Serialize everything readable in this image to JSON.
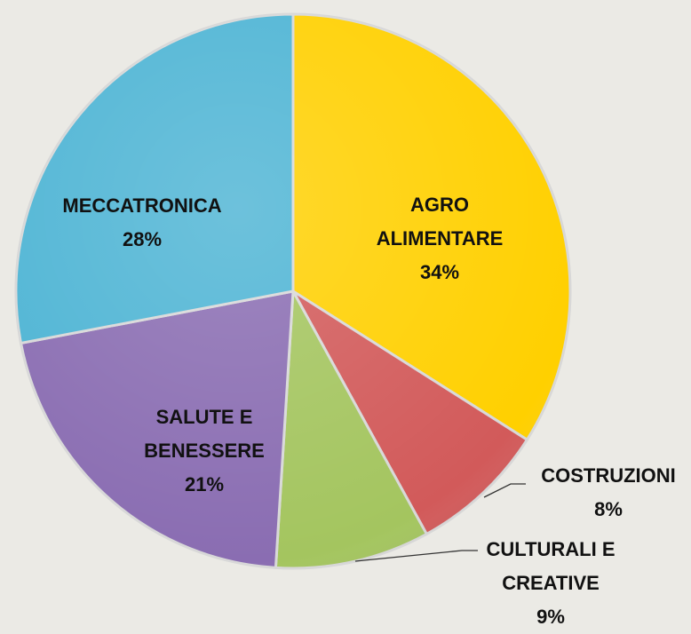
{
  "chart_data": {
    "type": "pie",
    "categories": [
      "AGRO ALIMENTARE",
      "COSTRUZIONI",
      "CULTURALI E CREATIVE",
      "SALUTE E BENESSERE",
      "MECCATRONICA"
    ],
    "values": [
      34,
      8,
      9,
      21,
      28
    ],
    "value_labels": [
      "34%",
      "8%",
      "9%",
      "21%",
      "28%"
    ],
    "colors": [
      "#ffd000",
      "#d25a5a",
      "#a4c55f",
      "#8a6db2",
      "#4db4d4"
    ]
  }
}
